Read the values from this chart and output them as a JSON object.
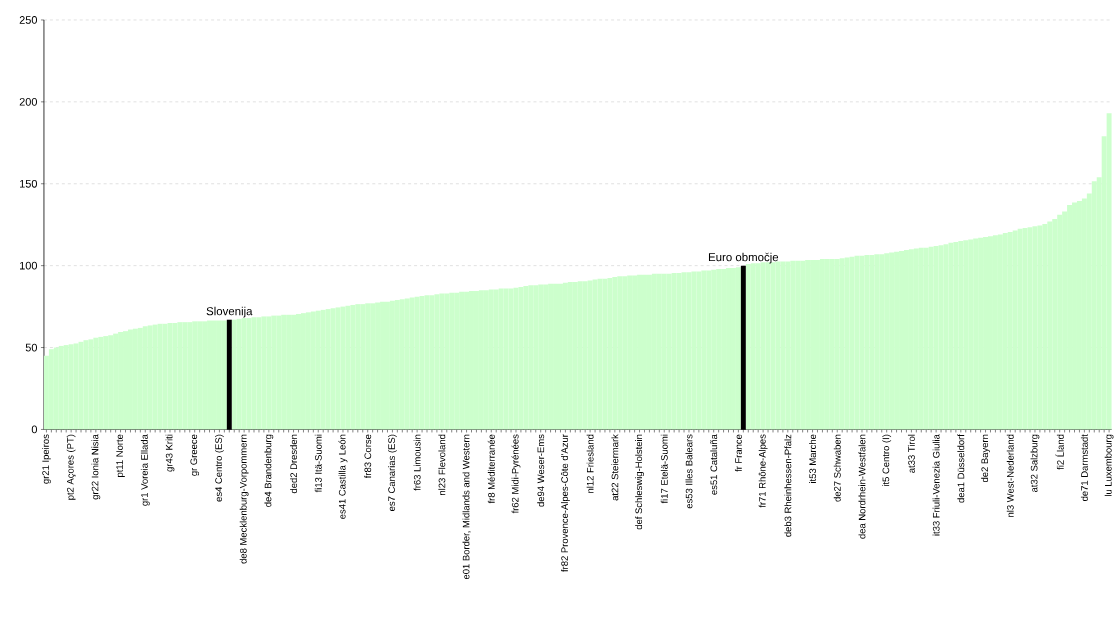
{
  "chart_data": {
    "type": "bar",
    "categories": [
      "gr21 Ipeiros",
      null,
      null,
      null,
      null,
      "pt2 Açores (PT)",
      null,
      null,
      null,
      null,
      "gr22 Ionia Nisia",
      null,
      null,
      null,
      null,
      "pt11 Norte",
      null,
      null,
      null,
      null,
      "gr1 Voreia Ellada",
      null,
      null,
      null,
      null,
      "gr43 Kriti",
      null,
      null,
      null,
      null,
      "gr Greece",
      null,
      null,
      null,
      null,
      "es4 Centro (ES)",
      null,
      null,
      null,
      null,
      "de8 Mecklenburg-Vorpommern",
      null,
      null,
      null,
      null,
      "de4 Brandenburg",
      null,
      null,
      null,
      null,
      "ded2 Dresden",
      null,
      null,
      null,
      null,
      "fi13 Itä-Suomi",
      null,
      null,
      null,
      null,
      "es41 Castilla y León",
      null,
      null,
      null,
      null,
      "fr83 Corse",
      null,
      null,
      null,
      null,
      "es7 Canarias (ES)",
      null,
      null,
      null,
      null,
      "fr63 Limousin",
      null,
      null,
      null,
      null,
      "nl23 Flevoland",
      null,
      null,
      null,
      null,
      "e01 Border, Midlands and Western",
      null,
      null,
      null,
      null,
      "fr8 Méditerranée",
      null,
      null,
      null,
      null,
      "fr62 Midi-Pyrénées",
      null,
      null,
      null,
      null,
      "de94 Weser-Ems",
      null,
      null,
      null,
      null,
      "fr82 Provence-Alpes-Côte d'Azur",
      null,
      null,
      null,
      null,
      "nl12 Friesland",
      null,
      null,
      null,
      null,
      "at22 Steiermark",
      null,
      null,
      null,
      null,
      "def Schleswig-Holstein",
      null,
      null,
      null,
      null,
      "fi17 Etelä-Suomi",
      null,
      null,
      null,
      null,
      "es53 Illes Balears",
      null,
      null,
      null,
      null,
      "es51 Cataluña",
      null,
      null,
      null,
      null,
      "fr France",
      null,
      null,
      null,
      null,
      "fr71 Rhône-Alpes",
      null,
      null,
      null,
      null,
      "deb3 Rheinhessen-Pfalz",
      null,
      null,
      null,
      null,
      "it53 Marche",
      null,
      null,
      null,
      null,
      "de27 Schwaben",
      null,
      null,
      null,
      null,
      "dea Nordrhein-Westfalen",
      null,
      null,
      null,
      null,
      "it5 Centro (I)",
      null,
      null,
      null,
      null,
      "at33 Tirol",
      null,
      null,
      null,
      null,
      "it33 Friuli-Venezia Giulia",
      null,
      null,
      null,
      null,
      "dea1 Düsseldorf",
      null,
      null,
      null,
      null,
      "de2 Bayern",
      null,
      null,
      null,
      null,
      "nl3 West-Nederland",
      null,
      null,
      null,
      null,
      "at32 Salzburg",
      null,
      null,
      null,
      null,
      "fi2 Ĺland",
      null,
      null,
      null,
      null,
      "de71 Darmstadt",
      null,
      null,
      null,
      null,
      "lu Luxembourg"
    ],
    "series": [
      {
        "color": "#ccffcc",
        "values": [
          45,
          49,
          50,
          51,
          51.5,
          52,
          52.5,
          53.5,
          54.5,
          55,
          56,
          56.5,
          57,
          57.5,
          58.5,
          59.5,
          60,
          61,
          61.5,
          62,
          63,
          63.5,
          64,
          64.5,
          64.5,
          65,
          65,
          65.5,
          65.5,
          65.5,
          66,
          66,
          66,
          66.5,
          66.5,
          66.5,
          66.5,
          null,
          67,
          67.5,
          68,
          68,
          68.5,
          68.5,
          69,
          69,
          69.5,
          69.5,
          70,
          70,
          70,
          70.5,
          71,
          71.5,
          72,
          72.5,
          73,
          73.5,
          74,
          74.5,
          75,
          75.5,
          76,
          76.5,
          76.5,
          77,
          77,
          77.5,
          78,
          78,
          78.5,
          79,
          79.5,
          80,
          80.5,
          81,
          81.5,
          82,
          82,
          82.5,
          83,
          83,
          83.5,
          83.5,
          84,
          84,
          84.5,
          84.5,
          85,
          85,
          85.5,
          85.5,
          86,
          86,
          86,
          86.5,
          87,
          87.5,
          88,
          88,
          88.5,
          88.5,
          89,
          89,
          89,
          89.5,
          90,
          90,
          90.5,
          90.5,
          91,
          91.5,
          92,
          92,
          92.5,
          93,
          93.5,
          93.5,
          94,
          94,
          94.5,
          94.5,
          94.5,
          95,
          95,
          95,
          95,
          95.5,
          95.5,
          96,
          96,
          96.5,
          96.5,
          97,
          97,
          97.5,
          98,
          98,
          98.5,
          98.5,
          99,
          null,
          101,
          101.5,
          101.5,
          102,
          102,
          102,
          102.5,
          102.5,
          102.5,
          103,
          103,
          103,
          103.5,
          103.5,
          103.5,
          104,
          104,
          104,
          104,
          104.5,
          105,
          105.5,
          106,
          106,
          106.5,
          106.5,
          107,
          107,
          107.5,
          108,
          108.5,
          109,
          109.5,
          110,
          110.5,
          111,
          111,
          111.5,
          112,
          112.5,
          113,
          114,
          114.5,
          115,
          115.5,
          116,
          116.5,
          117,
          117.5,
          118,
          118.5,
          119,
          120,
          120.5,
          121.5,
          122.5,
          123,
          123.5,
          124,
          124.5,
          125.5,
          127,
          128.5,
          131,
          133,
          137,
          138.5,
          139.5,
          141,
          144,
          151.5,
          154,
          179,
          193
        ]
      },
      {
        "color": "#000000",
        "values": [
          null,
          null,
          null,
          null,
          null,
          null,
          null,
          null,
          null,
          null,
          null,
          null,
          null,
          null,
          null,
          null,
          null,
          null,
          null,
          null,
          null,
          null,
          null,
          null,
          null,
          null,
          null,
          null,
          null,
          null,
          null,
          null,
          null,
          null,
          null,
          null,
          null,
          67,
          null,
          null,
          null,
          null,
          null,
          null,
          null,
          null,
          null,
          null,
          null,
          null,
          null,
          null,
          null,
          null,
          null,
          null,
          null,
          null,
          null,
          null,
          null,
          null,
          null,
          null,
          null,
          null,
          null,
          null,
          null,
          null,
          null,
          null,
          null,
          null,
          null,
          null,
          null,
          null,
          null,
          null,
          null,
          null,
          null,
          null,
          null,
          null,
          null,
          null,
          null,
          null,
          null,
          null,
          null,
          null,
          null,
          null,
          null,
          null,
          null,
          null,
          null,
          null,
          null,
          null,
          null,
          null,
          null,
          null,
          null,
          null,
          null,
          null,
          null,
          null,
          null,
          null,
          null,
          null,
          null,
          null,
          null,
          null,
          null,
          null,
          null,
          null,
          null,
          null,
          null,
          null,
          null,
          null,
          null,
          null,
          null,
          null,
          null,
          null,
          null,
          null,
          null,
          100,
          null,
          null,
          null,
          null,
          null,
          null,
          null,
          null,
          null,
          null,
          null,
          null,
          null,
          null,
          null,
          null,
          null,
          null,
          null,
          null,
          null,
          null,
          null,
          null,
          null,
          null,
          null,
          null,
          null,
          null,
          null,
          null,
          null,
          null,
          null,
          null,
          null,
          null,
          null,
          null,
          null,
          null,
          null,
          null,
          null,
          null,
          null,
          null,
          null,
          null,
          null,
          null,
          null,
          null,
          null,
          null,
          null,
          null,
          null,
          null,
          null,
          null,
          null,
          null,
          null,
          null,
          null,
          null,
          null,
          null,
          null,
          null,
          null,
          null
        ]
      }
    ],
    "annotations": [
      "Slovenija",
      "Euro območje"
    ],
    "ylim": [
      0,
      250
    ],
    "yticks": [
      0,
      50,
      100,
      150,
      200,
      250
    ],
    "grid": "y"
  }
}
